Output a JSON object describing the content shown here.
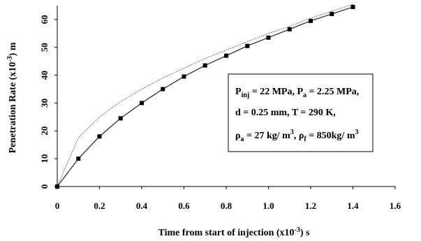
{
  "chart_data": {
    "type": "line",
    "xlabel": "Time from start of injection (x10",
    "xlabel_exp": "-3",
    "xlabel_unit": ") s",
    "ylabel": "Penetration Rate (x10",
    "ylabel_exp": "-3",
    "ylabel_unit": ") m",
    "xlim": [
      0,
      1.6
    ],
    "ylim": [
      0,
      65
    ],
    "x_ticks": [
      0,
      0.2,
      0.4,
      0.6,
      0.8,
      1.0,
      1.2,
      1.4,
      1.6
    ],
    "x_tick_labels": [
      "0",
      "0.2",
      "0.4",
      "0.6",
      "0.8",
      "1.0",
      "1.2",
      "1.4",
      "1.6"
    ],
    "y_ticks": [
      0,
      10,
      20,
      30,
      40,
      50,
      60
    ],
    "y_tick_labels": [
      "0",
      "10",
      "20",
      "30",
      "40",
      "50",
      "60"
    ],
    "grid": false,
    "series": [
      {
        "color": "#333333",
        "marker": "square",
        "x": [
          0,
          0.1,
          0.2,
          0.3,
          0.4,
          0.5,
          0.6,
          0.7,
          0.8,
          0.9,
          1.0,
          1.1,
          1.2,
          1.3,
          1.4
        ],
        "y": [
          0,
          10,
          18,
          24.5,
          30,
          35,
          39.5,
          43.5,
          47,
          50.5,
          53.5,
          56.5,
          59.5,
          62,
          64.5
        ]
      },
      {
        "color": "#555555",
        "marker": "none",
        "x": [
          0,
          0.1,
          0.2,
          0.3,
          0.4,
          0.5,
          0.6,
          0.7,
          0.8,
          0.9,
          1.0,
          1.1,
          1.2,
          1.3,
          1.4
        ],
        "y": [
          0,
          17.5,
          25,
          30.5,
          35,
          39,
          42.5,
          46,
          49,
          52,
          55,
          57.5,
          60.5,
          63,
          65.5
        ]
      }
    ],
    "annotation": {
      "line1": [
        {
          "t": "P",
          "sub": false
        },
        {
          "t": "inj",
          "sub": true
        },
        {
          "t": " = 22 MPa, P",
          "sub": false
        },
        {
          "t": "a",
          "sub": true
        },
        {
          "t": " = 2.25 MPa,",
          "sub": false
        }
      ],
      "line2": [
        {
          "t": "d = 0.25 mm, T = 290 K,",
          "sub": false
        }
      ],
      "line3": [
        {
          "t": "ρ",
          "sub": false
        },
        {
          "t": "a",
          "sub": true
        },
        {
          "t": " = 27 kg/ m",
          "sub": false
        },
        {
          "t": "3",
          "sup": true
        },
        {
          "t": ", ρ",
          "sub": false
        },
        {
          "t": "f",
          "sub": true
        },
        {
          "t": " = 850kg/ m",
          "sub": false
        },
        {
          "t": "3",
          "sup": true
        }
      ]
    }
  }
}
